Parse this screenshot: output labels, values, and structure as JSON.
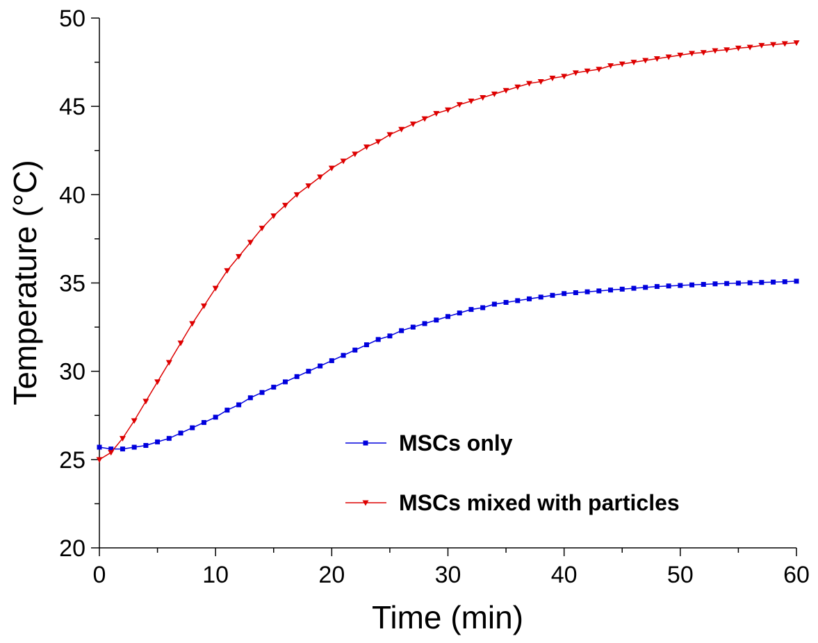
{
  "chart_data": {
    "type": "line",
    "title": "",
    "xlabel": "Time (min)",
    "ylabel": "Temperature (°C)",
    "xlim": [
      0,
      60
    ],
    "ylim": [
      20,
      50
    ],
    "xticks": [
      0,
      10,
      20,
      30,
      40,
      50,
      60
    ],
    "yticks": [
      20,
      25,
      30,
      35,
      40,
      45,
      50
    ],
    "grid": false,
    "legend_position": "bottom-center",
    "x": [
      0,
      1,
      2,
      3,
      4,
      5,
      6,
      7,
      8,
      9,
      10,
      11,
      12,
      13,
      14,
      15,
      16,
      17,
      18,
      19,
      20,
      21,
      22,
      23,
      24,
      25,
      26,
      27,
      28,
      29,
      30,
      31,
      32,
      33,
      34,
      35,
      36,
      37,
      38,
      39,
      40,
      41,
      42,
      43,
      44,
      45,
      46,
      47,
      48,
      49,
      50,
      51,
      52,
      53,
      54,
      55,
      56,
      57,
      58,
      59,
      60
    ],
    "series": [
      {
        "name": "MSCs only",
        "color": "#0000dd",
        "marker": "square",
        "values": [
          25.7,
          25.6,
          25.6,
          25.7,
          25.8,
          26.0,
          26.2,
          26.5,
          26.8,
          27.1,
          27.4,
          27.8,
          28.1,
          28.5,
          28.8,
          29.1,
          29.4,
          29.7,
          30.0,
          30.3,
          30.6,
          30.9,
          31.2,
          31.5,
          31.8,
          32.0,
          32.3,
          32.5,
          32.7,
          32.9,
          33.1,
          33.3,
          33.5,
          33.6,
          33.8,
          33.9,
          34.0,
          34.1,
          34.2,
          34.3,
          34.4,
          34.45,
          34.5,
          34.55,
          34.6,
          34.65,
          34.7,
          34.75,
          34.8,
          34.83,
          34.86,
          34.89,
          34.92,
          34.95,
          34.97,
          34.99,
          35.01,
          35.03,
          35.05,
          35.07,
          35.1
        ]
      },
      {
        "name": "MSCs mixed with particles",
        "color": "#dd0000",
        "marker": "triangle-down",
        "values": [
          25.0,
          25.4,
          26.2,
          27.2,
          28.3,
          29.4,
          30.5,
          31.6,
          32.7,
          33.7,
          34.7,
          35.7,
          36.5,
          37.3,
          38.1,
          38.8,
          39.4,
          40.0,
          40.5,
          41.0,
          41.5,
          41.9,
          42.3,
          42.7,
          43.0,
          43.4,
          43.7,
          44.0,
          44.3,
          44.6,
          44.8,
          45.1,
          45.3,
          45.5,
          45.7,
          45.9,
          46.1,
          46.3,
          46.4,
          46.6,
          46.7,
          46.9,
          47.0,
          47.1,
          47.3,
          47.4,
          47.5,
          47.6,
          47.7,
          47.8,
          47.9,
          48.0,
          48.05,
          48.15,
          48.2,
          48.3,
          48.35,
          48.45,
          48.5,
          48.55,
          48.6
        ]
      }
    ]
  }
}
